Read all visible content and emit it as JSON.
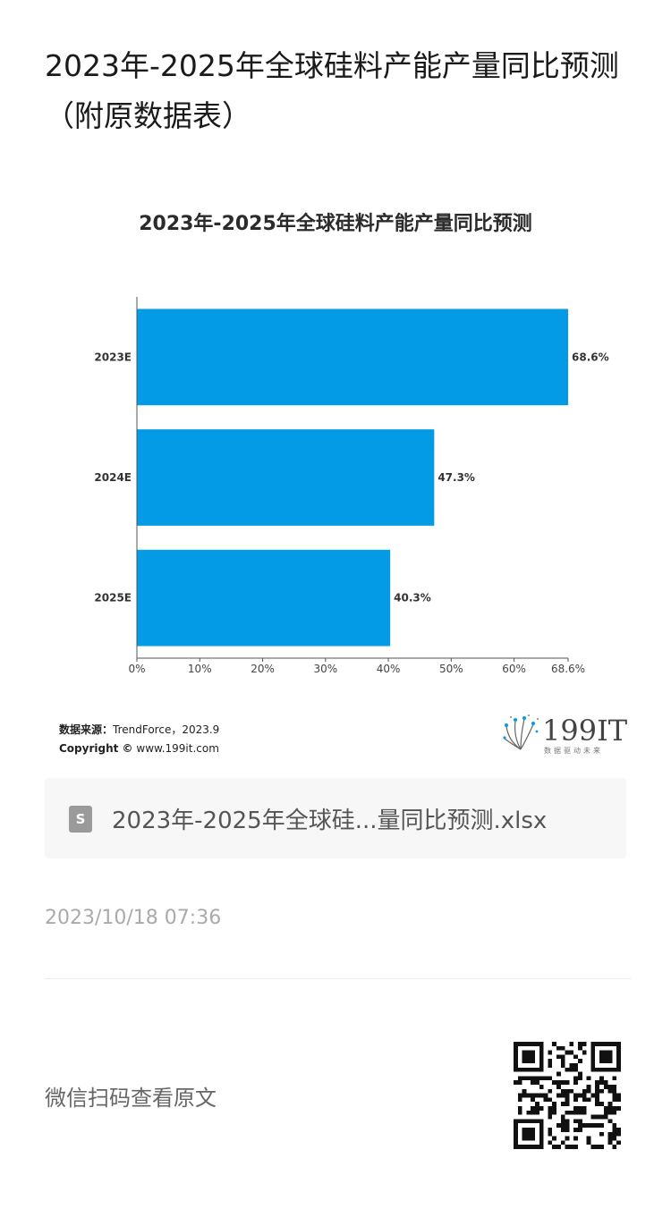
{
  "article": {
    "title": "2023年-2025年全球硅料产能产量同比预测（附原数据表）"
  },
  "chart_data": {
    "type": "bar",
    "orientation": "horizontal",
    "title": "2023年-2025年全球硅料产能产量同比预测",
    "categories": [
      "2023E",
      "2024E",
      "2025E"
    ],
    "values": [
      68.6,
      47.3,
      40.3
    ],
    "value_labels": [
      "68.6%",
      "47.3%",
      "40.3%"
    ],
    "xlim": [
      0,
      68.6
    ],
    "xticks": [
      0,
      10,
      20,
      30,
      40,
      50,
      60,
      68.6
    ],
    "xtick_labels": [
      "0%",
      "10%",
      "20%",
      "30%",
      "40%",
      "50%",
      "60%",
      "68.6%"
    ],
    "bar_color": "#039be5",
    "grid": false
  },
  "source": {
    "label": "数据来源：",
    "value": "TrendForce，2023.9",
    "copyright_label": "Copyright ©",
    "copyright_value": "www.199it.com"
  },
  "brand": {
    "name": "199IT",
    "tagline": "数据驱动未来"
  },
  "attachment": {
    "icon": "spreadsheet-file-icon",
    "icon_glyph": "S",
    "filename": "2023年-2025年全球硅...量同比预测.xlsx"
  },
  "meta": {
    "timestamp": "2023/10/18 07:36",
    "read_original": "微信扫码查看原文"
  }
}
